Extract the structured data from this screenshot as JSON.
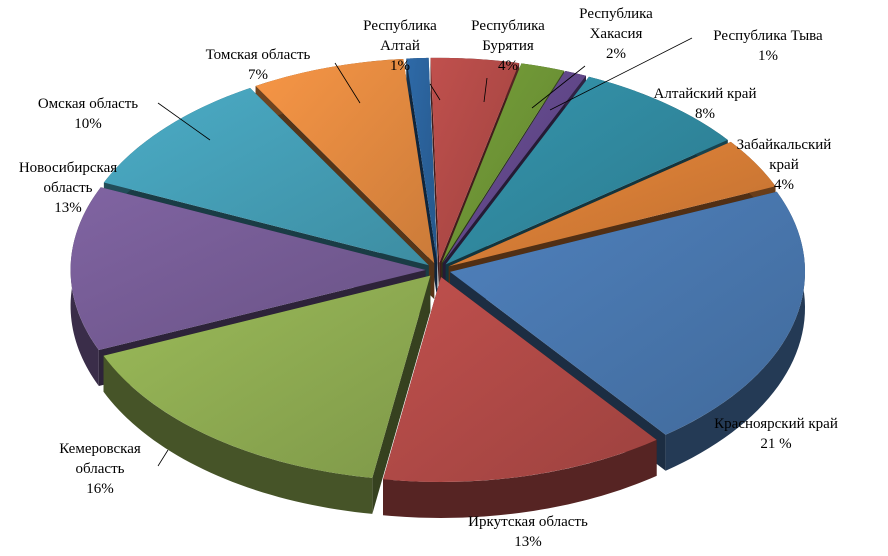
{
  "chart_data": {
    "type": "pie",
    "variant": "3d-exploded",
    "title": "",
    "slices": [
      {
        "name": "Республика Алтай",
        "label_lines": [
          "Республика",
          "Алтай",
          "1%"
        ],
        "value": 1,
        "color": "#2e6aa8"
      },
      {
        "name": "Республика Бурятия",
        "label_lines": [
          "Республика",
          "Бурятия",
          "4%"
        ],
        "value": 4,
        "color": "#c0504d"
      },
      {
        "name": "Республика Хакасия",
        "label_lines": [
          "Республика",
          "Хакасия",
          "2%"
        ],
        "value": 2,
        "color": "#77a13a"
      },
      {
        "name": "Республика Тыва",
        "label_lines": [
          "Республика Тыва",
          "1%"
        ],
        "value": 1,
        "color": "#6a4e96"
      },
      {
        "name": "Алтайский край",
        "label_lines": [
          "Алтайский край",
          "8%"
        ],
        "value": 8,
        "color": "#3595ad"
      },
      {
        "name": "Забайкальский край",
        "label_lines": [
          "Забайкальский",
          "край",
          "4%"
        ],
        "value": 4,
        "color": "#e8873a"
      },
      {
        "name": "Красноярский край",
        "label_lines": [
          "Красноярский край",
          "21 %"
        ],
        "value": 21,
        "color": "#4f81bd"
      },
      {
        "name": "Иркутская область",
        "label_lines": [
          "Иркутская область",
          "13%"
        ],
        "value": 13,
        "color": "#c0504d"
      },
      {
        "name": "Кемеровская область",
        "label_lines": [
          "Кемеровская",
          "область",
          "16%"
        ],
        "value": 16,
        "color": "#9bbb59"
      },
      {
        "name": "Новосибирская область",
        "label_lines": [
          "Новосибирская",
          "область",
          "13%"
        ],
        "value": 13,
        "color": "#8064a2"
      },
      {
        "name": "Омская область",
        "label_lines": [
          "Омская область",
          "10%"
        ],
        "value": 10,
        "color": "#4bacc6"
      },
      {
        "name": "Томская область",
        "label_lines": [
          "Томская область",
          "7%"
        ],
        "value": 7,
        "color": "#f79646"
      }
    ]
  }
}
